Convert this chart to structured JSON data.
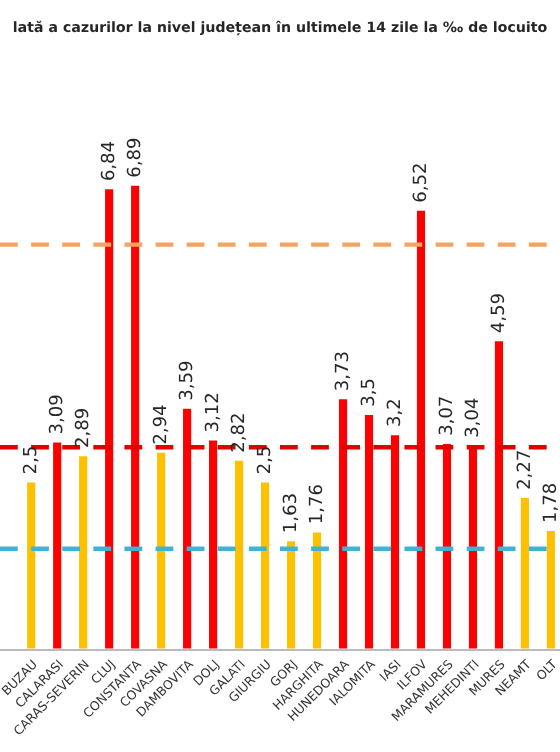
{
  "chart_data": {
    "type": "bar",
    "title": "lată a cazurilor la nivel județean în ultimele 14 zile la ‰ de locuito",
    "categories": [
      "BUZAU",
      "CALARASI",
      "CARAS-SEVERIN",
      "CLUJ",
      "CONSTANTA",
      "COVASNA",
      "DAMBOVITA",
      "DOLJ",
      "GALATI",
      "GIURGIU",
      "GORJ",
      "HARGHITA",
      "HUNEDOARA",
      "IALOMITA",
      "IASI",
      "ILFOV",
      "MARAMURES",
      "MEHEDINTI",
      "MURES",
      "NEAMT",
      "OLT"
    ],
    "values": [
      2.5,
      3.09,
      2.89,
      6.84,
      6.89,
      2.94,
      3.59,
      3.12,
      2.82,
      2.5,
      1.63,
      1.76,
      3.73,
      3.5,
      3.2,
      6.52,
      3.07,
      3.04,
      4.59,
      2.27,
      1.78
    ],
    "colors": [
      "#ffc000",
      "#ff0000",
      "#ffc000",
      "#ff0000",
      "#ff0000",
      "#ffc000",
      "#ff0000",
      "#ff0000",
      "#ffc000",
      "#ffc000",
      "#ffc000",
      "#ffc000",
      "#ff0000",
      "#ff0000",
      "#ff0000",
      "#ff0000",
      "#ff0000",
      "#ff0000",
      "#ff0000",
      "#ffc000",
      "#ffc000"
    ],
    "value_labels": [
      "2,5",
      "3,09",
      "2,89",
      "6,84",
      "6,89",
      "2,94",
      "3,59",
      "3,12",
      "2,82",
      "2,5",
      "1,63",
      "1,76",
      "3,73",
      "3,5",
      "3,2",
      "6,52",
      "3,07",
      "3,04",
      "4,59",
      "2,27",
      "1,78"
    ],
    "ref_lines": [
      {
        "axis": "y",
        "value": 6,
        "color": "#f4a460",
        "line_style": "dashed"
      },
      {
        "axis": "y",
        "value": 3,
        "color": "#e00000",
        "line_style": "dashed"
      },
      {
        "axis": "y",
        "value": 1.5,
        "color": "#3cb4d8",
        "line_style": "dashed"
      }
    ],
    "grid": false,
    "legend": false
  }
}
